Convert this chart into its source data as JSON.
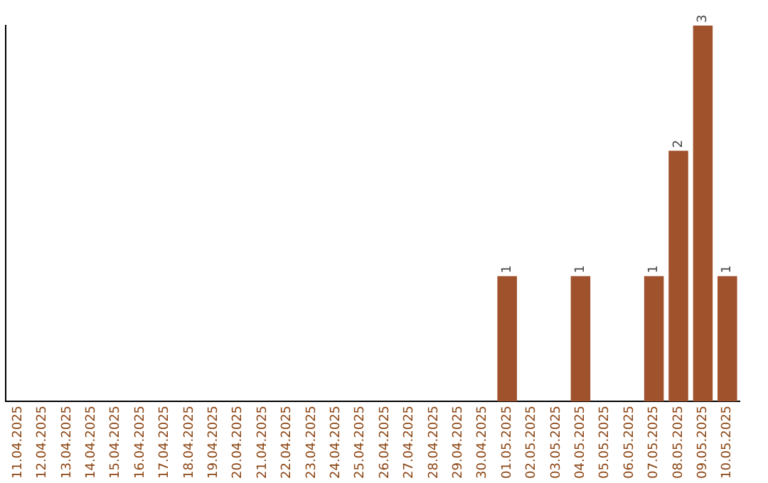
{
  "chart_data": {
    "type": "bar",
    "categories": [
      "11.04.2025",
      "12.04.2025",
      "13.04.2025",
      "14.04.2025",
      "15.04.2025",
      "16.04.2025",
      "17.04.2025",
      "18.04.2025",
      "19.04.2025",
      "20.04.2025",
      "21.04.2025",
      "22.04.2025",
      "23.04.2025",
      "24.04.2025",
      "25.04.2025",
      "26.04.2025",
      "27.04.2025",
      "28.04.2025",
      "29.04.2025",
      "30.04.2025",
      "01.05.2025",
      "02.05.2025",
      "03.05.2025",
      "04.05.2025",
      "05.05.2025",
      "06.05.2025",
      "07.05.2025",
      "08.05.2025",
      "09.05.2025",
      "10.05.2025"
    ],
    "values": [
      null,
      null,
      null,
      null,
      null,
      null,
      null,
      null,
      null,
      null,
      null,
      null,
      null,
      null,
      null,
      null,
      null,
      null,
      null,
      null,
      1,
      null,
      null,
      1,
      null,
      null,
      1,
      2,
      3,
      1
    ],
    "value_labels": [
      null,
      null,
      null,
      null,
      null,
      null,
      null,
      null,
      null,
      null,
      null,
      null,
      null,
      null,
      null,
      null,
      null,
      null,
      null,
      null,
      "1",
      null,
      null,
      "1",
      null,
      null,
      "1",
      "2",
      "3",
      "1"
    ],
    "color": "#a0522d",
    "grid": false,
    "legend": false,
    "tick_labels": "x"
  }
}
